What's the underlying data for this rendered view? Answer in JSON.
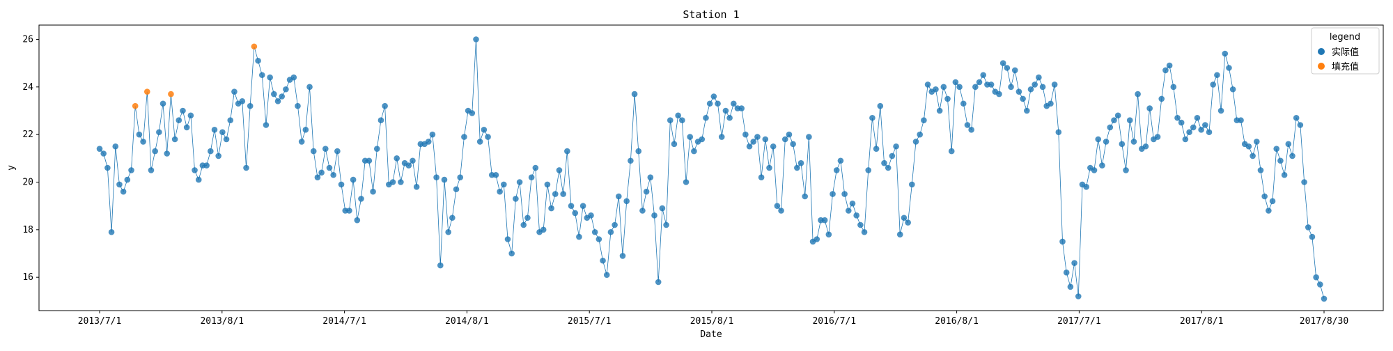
{
  "chart_data": {
    "type": "scatter",
    "title": "Station 1",
    "xlabel": "Date",
    "ylabel": "y",
    "ylim": [
      14.6,
      26.6
    ],
    "yticks": [
      16,
      18,
      20,
      22,
      24,
      26
    ],
    "x_tick_labels": [
      "2013/7/1",
      "2013/8/1",
      "2014/7/1",
      "2014/8/1",
      "2015/7/1",
      "2015/8/1",
      "2016/7/1",
      "2016/8/1",
      "2017/7/1",
      "2017/8/1",
      "2017/8/30"
    ],
    "grid": false,
    "legend_position": "top-right",
    "legend_title": "legend",
    "colors": {
      "actual": "#1f77b4",
      "filled": "#ff7f0e",
      "line": "#1f77b4"
    },
    "series": [
      {
        "name": "实际值",
        "role": "actual",
        "values": [
          21.4,
          21.2,
          20.6,
          17.9,
          21.5,
          19.9,
          19.6,
          20.1,
          20.5,
          null,
          22.0,
          21.7,
          null,
          20.5,
          21.3,
          22.1,
          23.3,
          21.2,
          null,
          21.8,
          22.6,
          23.0,
          22.3,
          22.8,
          20.5,
          20.1,
          20.7,
          20.7,
          21.3,
          22.2,
          21.1,
          22.1,
          21.8,
          22.6,
          23.8,
          23.3,
          23.4,
          20.6,
          23.2,
          null,
          25.1,
          24.5,
          22.4,
          24.4,
          23.7,
          23.4,
          23.6,
          23.9,
          24.3,
          24.4,
          23.2,
          21.7,
          22.2,
          24.0,
          21.3,
          20.2,
          20.4,
          21.4,
          20.6,
          20.3,
          21.3,
          19.9,
          18.8,
          18.8,
          20.1,
          18.4,
          19.3,
          20.9,
          20.9,
          19.6,
          21.4,
          22.6,
          23.2,
          19.9,
          20.0,
          21.0,
          20.0,
          20.8,
          20.7,
          20.9,
          19.8,
          21.6,
          21.6,
          21.7,
          22.0,
          20.2,
          16.5,
          20.1,
          17.9,
          18.5,
          19.7,
          20.2,
          21.9,
          23.0,
          22.9,
          26.0,
          21.7,
          22.2,
          21.9,
          20.3,
          20.3,
          19.6,
          19.9,
          17.6,
          17.0,
          19.3,
          20.0,
          18.2,
          18.5,
          20.2,
          20.6,
          17.9,
          18.0,
          19.9,
          18.9,
          19.5,
          20.5,
          19.5,
          21.3,
          19.0,
          18.7,
          17.7,
          19.0,
          18.5,
          18.6,
          17.9,
          17.6,
          16.7,
          16.1,
          17.9,
          18.2,
          19.4,
          16.9,
          19.2,
          20.9,
          23.7,
          21.3,
          18.8,
          19.6,
          20.2,
          18.6,
          15.8,
          18.9,
          18.2,
          22.6,
          21.6,
          22.8,
          22.6,
          20.0,
          21.9,
          21.3,
          21.7,
          21.8,
          22.7,
          23.3,
          23.6,
          23.3,
          21.9,
          23.0,
          22.7,
          23.3,
          23.1,
          23.1,
          22.0,
          21.5,
          21.7,
          21.9,
          20.2,
          21.8,
          20.6,
          21.5,
          19.0,
          18.8,
          21.8,
          22.0,
          21.6,
          20.6,
          20.8,
          19.4,
          21.9,
          17.5,
          17.6,
          18.4,
          18.4,
          17.8,
          19.5,
          20.5,
          20.9,
          19.5,
          18.8,
          19.1,
          18.6,
          18.2,
          17.9,
          20.5,
          22.7,
          21.4,
          23.2,
          20.8,
          20.6,
          21.1,
          21.5,
          17.8,
          18.5,
          18.3,
          19.9,
          21.7,
          22.0,
          22.6,
          24.1,
          23.8,
          23.9,
          23.0,
          24.0,
          23.5,
          21.3,
          24.2,
          24.0,
          23.3,
          22.4,
          22.2,
          24.0,
          24.2,
          24.5,
          24.1,
          24.1,
          23.8,
          23.7,
          25.0,
          24.8,
          24.0,
          24.7,
          23.8,
          23.5,
          23.0,
          23.9,
          24.1,
          24.4,
          24.0,
          23.2,
          23.3,
          24.1,
          22.1,
          17.5,
          16.2,
          15.6,
          16.6,
          15.2,
          19.9,
          19.8,
          20.6,
          20.5,
          21.8,
          20.7,
          21.7,
          22.3,
          22.6,
          22.8,
          21.6,
          20.5,
          22.6,
          21.7,
          23.7,
          21.4,
          21.5,
          23.1,
          21.8,
          21.9,
          23.5,
          24.7,
          24.9,
          24.0,
          22.7,
          22.5,
          21.8,
          22.1,
          22.3,
          22.7,
          22.2,
          22.4,
          22.1,
          24.1,
          24.5,
          23.0,
          25.4,
          24.8,
          23.9,
          22.6,
          22.6,
          21.6,
          21.5,
          21.1,
          21.7,
          20.5,
          19.4,
          18.8,
          19.2,
          21.4,
          20.9,
          20.3,
          21.6,
          21.1,
          22.7,
          22.4,
          20.0,
          18.1,
          17.7,
          16.0,
          15.7,
          15.1
        ]
      },
      {
        "name": "填充值",
        "role": "filled",
        "values": [
          null,
          null,
          null,
          null,
          null,
          null,
          null,
          null,
          null,
          23.2,
          null,
          null,
          23.8,
          null,
          null,
          null,
          null,
          null,
          23.7,
          null,
          null,
          null,
          null,
          null,
          null,
          null,
          null,
          null,
          null,
          null,
          null,
          null,
          null,
          null,
          null,
          null,
          null,
          null,
          null,
          25.7,
          null,
          null,
          null,
          null,
          null,
          null,
          null,
          null,
          null,
          null,
          null,
          null,
          null,
          null,
          null,
          null,
          null,
          null,
          null,
          null,
          null,
          null,
          null,
          null,
          null,
          null,
          null,
          null,
          null,
          null,
          null,
          null,
          null,
          null,
          null,
          null,
          null,
          null,
          null,
          null,
          null,
          null,
          null,
          null,
          null,
          null,
          null,
          null,
          null,
          null,
          null,
          null,
          null,
          null,
          null,
          null,
          null,
          null,
          null,
          null,
          null,
          null,
          null,
          null,
          null,
          null,
          null,
          null,
          null,
          null,
          null,
          null,
          null,
          null,
          null,
          null,
          null,
          null,
          null,
          null,
          null,
          null,
          null,
          null,
          null,
          null,
          null,
          null,
          null,
          null,
          null,
          null,
          null,
          null,
          null,
          null,
          null,
          null,
          null,
          null,
          null,
          null,
          null,
          null,
          null,
          null,
          null,
          null,
          null,
          null,
          null,
          null,
          null,
          null,
          null,
          null,
          null,
          null,
          null,
          null,
          null,
          null,
          null,
          null,
          null,
          null,
          null,
          null,
          null,
          null,
          null,
          null,
          null,
          null,
          null,
          null,
          null,
          null,
          null,
          null,
          null,
          null,
          null,
          null,
          null,
          null,
          null,
          null,
          null,
          null,
          null,
          null,
          null,
          null,
          null,
          null,
          null,
          null,
          null,
          null,
          null,
          null,
          null,
          null,
          null,
          null,
          null,
          null,
          null,
          null,
          null,
          null,
          null,
          null,
          null,
          null,
          null,
          null,
          null,
          null,
          null,
          null,
          null,
          null,
          null,
          null,
          null,
          null,
          null,
          null,
          null,
          null,
          null,
          null,
          null,
          null,
          null,
          null,
          null,
          null,
          null,
          null,
          null,
          null,
          null,
          null,
          null,
          null,
          null,
          null,
          null,
          null,
          null,
          null,
          null,
          null,
          null,
          null,
          null,
          null,
          null,
          null,
          null,
          null,
          null,
          null,
          null,
          null,
          null,
          null,
          null,
          null,
          null,
          null,
          null,
          null,
          null,
          null,
          null,
          null,
          null,
          null,
          null,
          null,
          null,
          null,
          null,
          null,
          null,
          null,
          null,
          null,
          null,
          null,
          null,
          null,
          null,
          null,
          null,
          null,
          null,
          null,
          null,
          null,
          null,
          null,
          null,
          null,
          null,
          null,
          null,
          null,
          null,
          null,
          null,
          null,
          null,
          null,
          null,
          null,
          null
        ]
      }
    ]
  }
}
